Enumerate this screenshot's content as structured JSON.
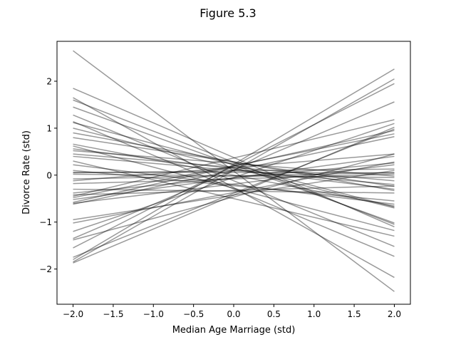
{
  "chart_data": {
    "type": "line",
    "title": "Figure 5.3",
    "xlabel": "Median Age Marriage (std)",
    "ylabel": "Divorce Rate (std)",
    "xlim": [
      -2.2,
      2.2
    ],
    "ylim": [
      -2.75,
      2.85
    ],
    "xticks": [
      -2.0,
      -1.5,
      -1.0,
      -0.5,
      0.0,
      0.5,
      1.0,
      1.5,
      2.0
    ],
    "xtick_labels": [
      "−2.0",
      "−1.5",
      "−1.0",
      "−0.5",
      "0.0",
      "0.5",
      "1.0",
      "1.5",
      "2.0"
    ],
    "yticks": [
      -2,
      -1,
      0,
      1,
      2
    ],
    "ytick_labels": [
      "−2",
      "−1",
      "0",
      "1",
      "2"
    ],
    "line_color": "#000000",
    "line_alpha": 0.4,
    "grid": false,
    "x": [
      -2.0,
      2.0
    ],
    "lines": [
      [
        2.65,
        -2.48
      ],
      [
        1.85,
        -1.1
      ],
      [
        1.65,
        -2.18
      ],
      [
        1.6,
        -1.05
      ],
      [
        1.45,
        -1.02
      ],
      [
        1.28,
        -1.52
      ],
      [
        1.14,
        -1.73
      ],
      [
        1.12,
        -0.68
      ],
      [
        1.0,
        -0.7
      ],
      [
        0.9,
        -0.33
      ],
      [
        0.8,
        -0.24
      ],
      [
        0.66,
        -0.66
      ],
      [
        0.62,
        -1.18
      ],
      [
        0.56,
        -0.3
      ],
      [
        0.52,
        -0.02
      ],
      [
        0.45,
        -0.12
      ],
      [
        0.4,
        -0.2
      ],
      [
        0.3,
        -1.3
      ],
      [
        0.06,
        0.05
      ],
      [
        0.05,
        0.13
      ],
      [
        0.02,
        -0.05
      ],
      [
        -0.12,
        0.45
      ],
      [
        -0.18,
        0.02
      ],
      [
        -0.38,
        0.26
      ],
      [
        -0.42,
        -0.23
      ],
      [
        -0.48,
        0.88
      ],
      [
        -0.52,
        0.4
      ],
      [
        -0.58,
        0.95
      ],
      [
        -0.62,
        0.82
      ],
      [
        -0.6,
        0.22
      ],
      [
        -1.02,
        0.28
      ],
      [
        -1.2,
        1.1
      ],
      [
        -1.35,
        1.56
      ],
      [
        -1.38,
        0.45
      ],
      [
        -1.55,
        1.95
      ],
      [
        -1.8,
        2.26
      ],
      [
        -1.85,
        2.05
      ],
      [
        -1.87,
        1.02
      ],
      [
        -1.75,
        0.98
      ],
      [
        -0.95,
        0.1
      ],
      [
        -0.3,
        -0.38
      ],
      [
        0.22,
        -0.62
      ],
      [
        -0.08,
        0.05
      ],
      [
        0.1,
        -0.55
      ],
      [
        -0.45,
        1.18
      ]
    ]
  }
}
